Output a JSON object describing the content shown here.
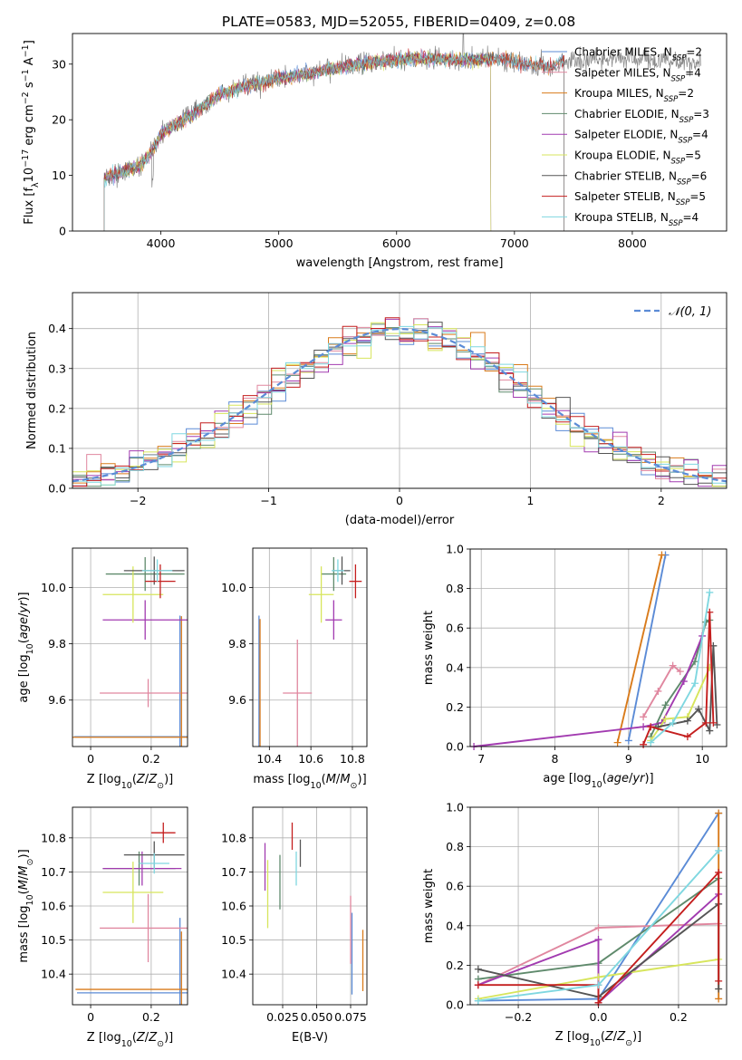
{
  "figure_title": "PLATE=0583, MJD=52055, FIBERID=0409, z=0.08",
  "colors": {
    "Chabrier MILES": "#5b8bd6",
    "Salpeter MILES": "#e0879f",
    "Kroupa MILES": "#d97b1b",
    "Chabrier ELODIE": "#5f8a6c",
    "Salpeter ELODIE": "#a23bb0",
    "Kroupa ELODIE": "#d7e55c",
    "Chabrier STELIB": "#555555",
    "Salpeter STELIB": "#c41e1e",
    "Kroupa STELIB": "#7fd7e0",
    "spectrum": "#888888",
    "normal_curve": "#5b8bd6"
  },
  "chart_data": [
    {
      "id": "spectrum",
      "type": "line",
      "title": "PLATE=0583, MJD=52055, FIBERID=0409, z=0.08",
      "xlabel": "wavelength [Angstrom, rest frame]",
      "ylabel": "Flux [fλ10^-17 erg cm^-2 s^-1 A^-1]",
      "xlim": [
        3250,
        8800
      ],
      "ylim": [
        0,
        35.5
      ],
      "xticks": [
        4000,
        5000,
        6000,
        7000,
        8000
      ],
      "yticks": [
        0,
        10,
        20,
        30
      ],
      "grid": false,
      "legend_position": "right",
      "data_series": {
        "name": "data",
        "color": "#888888"
      },
      "continuum": {
        "x": [
          3520,
          3650,
          3800,
          3900,
          4000,
          4150,
          4300,
          4500,
          4700,
          4900,
          5100,
          5300,
          5500,
          5700,
          5900,
          6100,
          6300,
          6500,
          6700,
          6900,
          7100,
          7300,
          7400,
          7600,
          7800,
          8000,
          8200,
          8400,
          8580
        ],
        "y": [
          9.5,
          10.5,
          11.5,
          13.5,
          17.5,
          19.5,
          21.5,
          24.5,
          26.0,
          27.0,
          27.8,
          28.5,
          29.3,
          30.0,
          30.5,
          31.0,
          31.0,
          30.8,
          30.8,
          31.0,
          30.0,
          29.5,
          30.5,
          30.8,
          31.0,
          31.0,
          30.8,
          30.5,
          29.8
        ]
      },
      "series": [
        {
          "name": "Chabrier MILES",
          "label_main": "Chabrier MILES, N",
          "label_sub": "SSP",
          "label_tail": "=2",
          "x_range": [
            3520,
            7420
          ]
        },
        {
          "name": "Salpeter MILES",
          "label_main": "Salpeter MILES, N",
          "label_sub": "SSP",
          "label_tail": "=4",
          "x_range": [
            3520,
            7420
          ]
        },
        {
          "name": "Kroupa MILES",
          "label_main": "Kroupa MILES, N",
          "label_sub": "SSP",
          "label_tail": "=2",
          "x_range": [
            3520,
            7420
          ]
        },
        {
          "name": "Chabrier ELODIE",
          "label_main": "Chabrier ELODIE, N",
          "label_sub": "SSP",
          "label_tail": "=3",
          "x_range": [
            3520,
            6800
          ]
        },
        {
          "name": "Salpeter ELODIE",
          "label_main": "Salpeter ELODIE, N",
          "label_sub": "SSP",
          "label_tail": "=4",
          "x_range": [
            3520,
            6800
          ]
        },
        {
          "name": "Kroupa ELODIE",
          "label_main": "Kroupa ELODIE, N",
          "label_sub": "SSP",
          "label_tail": "=5",
          "x_range": [
            3520,
            6800
          ]
        },
        {
          "name": "Chabrier STELIB",
          "label_main": "Chabrier STELIB, N",
          "label_sub": "SSP",
          "label_tail": "=6",
          "x_range": [
            3520,
            7420
          ]
        },
        {
          "name": "Salpeter STELIB",
          "label_main": "Salpeter STELIB, N",
          "label_sub": "SSP",
          "label_tail": "=5",
          "x_range": [
            3520,
            7420
          ]
        },
        {
          "name": "Kroupa STELIB",
          "label_main": "Kroupa STELIB, N",
          "label_sub": "SSP",
          "label_tail": "=4",
          "x_range": [
            3520,
            7420
          ]
        }
      ]
    },
    {
      "id": "residuals",
      "type": "step-histogram",
      "xlabel": "(data-model)/error",
      "ylabel": "Normed distribution",
      "xlim": [
        -2.5,
        2.5
      ],
      "ylim": [
        0,
        0.49
      ],
      "xticks": [
        -2,
        -1,
        0,
        1,
        2
      ],
      "yticks": [
        0.0,
        0.1,
        0.2,
        0.3,
        0.4
      ],
      "grid": true,
      "legend": "𝒩(0, 1)",
      "legend_position": "top-right",
      "bin_edges_range": [
        -2.5,
        2.5
      ],
      "bins": 46,
      "normal_curve": {
        "mean": 0,
        "sigma": 1,
        "style": "dashed"
      }
    },
    {
      "id": "age_vs_Z",
      "type": "errorbar",
      "xlabel": "Z [log10(Z/Z☉)]",
      "ylabel": "age  [log10(age/yr)]",
      "xlim": [
        -0.06,
        0.32
      ],
      "ylim": [
        9.435,
        10.14
      ],
      "xticks": [
        0.0,
        0.2
      ],
      "yticks": [
        9.6,
        9.8,
        10.0
      ],
      "grid": true,
      "points": [
        {
          "series": "Chabrier MILES",
          "x": 0.295,
          "y": 9.47,
          "xerr": 0.35,
          "yerr": 0.43
        },
        {
          "series": "Salpeter MILES",
          "x": 0.19,
          "y": 9.625,
          "xerr": 0.16,
          "yerr": 0.05
        },
        {
          "series": "Kroupa MILES",
          "x": 0.3,
          "y": 9.468,
          "xerr": 0.36,
          "yerr": 0.43
        },
        {
          "series": "Chabrier ELODIE",
          "x": 0.18,
          "y": 10.048,
          "xerr": 0.13,
          "yerr": 0.06
        },
        {
          "series": "Salpeter ELODIE",
          "x": 0.18,
          "y": 9.885,
          "xerr": 0.14,
          "yerr": 0.07
        },
        {
          "series": "Kroupa ELODIE",
          "x": 0.14,
          "y": 9.975,
          "xerr": 0.1,
          "yerr": 0.1
        },
        {
          "series": "Chabrier STELIB",
          "x": 0.21,
          "y": 10.06,
          "xerr": 0.1,
          "yerr": 0.05
        },
        {
          "series": "Salpeter STELIB",
          "x": 0.23,
          "y": 10.022,
          "xerr": 0.05,
          "yerr": 0.06
        },
        {
          "series": "Kroupa STELIB",
          "x": 0.22,
          "y": 10.06,
          "xerr": 0.05,
          "yerr": 0.04
        }
      ]
    },
    {
      "id": "age_vs_mass",
      "type": "errorbar",
      "xlabel": "mass [log10(M/M☉)]",
      "ylabel": "",
      "xlim": [
        10.32,
        10.87
      ],
      "ylim": [
        9.435,
        10.14
      ],
      "xticks": [
        10.4,
        10.6,
        10.8
      ],
      "yticks": [
        9.6,
        9.8,
        10.0
      ],
      "grid": true,
      "points": [
        {
          "series": "Chabrier MILES",
          "x": 10.35,
          "y": 9.47,
          "xerr": 0.0,
          "yerr": 0.43
        },
        {
          "series": "Salpeter MILES",
          "x": 10.535,
          "y": 9.625,
          "xerr": 0.07,
          "yerr": 0.19
        },
        {
          "series": "Kroupa MILES",
          "x": 10.355,
          "y": 9.468,
          "xerr": 0.0,
          "yerr": 0.42
        },
        {
          "series": "Chabrier ELODIE",
          "x": 10.71,
          "y": 10.048,
          "xerr": 0.06,
          "yerr": 0.06
        },
        {
          "series": "Salpeter ELODIE",
          "x": 10.71,
          "y": 9.885,
          "xerr": 0.04,
          "yerr": 0.07
        },
        {
          "series": "Kroupa ELODIE",
          "x": 10.65,
          "y": 9.975,
          "xerr": 0.06,
          "yerr": 0.1
        },
        {
          "series": "Chabrier STELIB",
          "x": 10.75,
          "y": 10.06,
          "xerr": 0.04,
          "yerr": 0.05
        },
        {
          "series": "Salpeter STELIB",
          "x": 10.815,
          "y": 10.022,
          "xerr": 0.03,
          "yerr": 0.06
        },
        {
          "series": "Kroupa STELIB",
          "x": 10.73,
          "y": 10.06,
          "xerr": 0.03,
          "yerr": 0.04
        }
      ]
    },
    {
      "id": "weight_vs_age",
      "type": "line",
      "xlabel": "age  [log10(age/yr)]",
      "ylabel": "mass weight",
      "xlim": [
        6.85,
        10.33
      ],
      "ylim": [
        0,
        1.0
      ],
      "xticks": [
        7,
        8,
        9,
        10
      ],
      "yticks": [
        0.0,
        0.2,
        0.4,
        0.6,
        0.8,
        1.0
      ],
      "grid": true,
      "series": [
        {
          "name": "Chabrier MILES",
          "x": [
            9.0,
            9.5
          ],
          "y": [
            0.03,
            0.97
          ]
        },
        {
          "name": "Salpeter MILES",
          "x": [
            9.2,
            9.4,
            9.6,
            9.7
          ],
          "y": [
            0.15,
            0.28,
            0.41,
            0.38
          ]
        },
        {
          "name": "Kroupa MILES",
          "x": [
            8.85,
            9.45
          ],
          "y": [
            0.02,
            0.97
          ]
        },
        {
          "name": "Chabrier ELODIE",
          "x": [
            9.3,
            9.5,
            9.9,
            10.05,
            10.1
          ],
          "y": [
            0.05,
            0.21,
            0.43,
            0.63,
            0.64
          ]
        },
        {
          "name": "Salpeter ELODIE",
          "x": [
            6.9,
            9.2,
            9.45,
            9.75,
            10.0
          ],
          "y": [
            0.0,
            0.1,
            0.12,
            0.33,
            0.56
          ]
        },
        {
          "name": "Kroupa ELODIE",
          "x": [
            9.3,
            9.5,
            9.8,
            10.1
          ],
          "y": [
            0.03,
            0.14,
            0.15,
            0.4
          ]
        },
        {
          "name": "Chabrier STELIB",
          "x": [
            9.4,
            9.8,
            9.95,
            10.1,
            10.15,
            10.2
          ],
          "y": [
            0.1,
            0.13,
            0.19,
            0.08,
            0.51,
            0.11
          ]
        },
        {
          "name": "Salpeter STELIB",
          "x": [
            9.2,
            9.3,
            9.8,
            10.05,
            10.1,
            10.15
          ],
          "y": [
            0.01,
            0.1,
            0.05,
            0.12,
            0.68,
            0.12
          ]
        },
        {
          "name": "Kroupa STELIB",
          "x": [
            9.3,
            9.6,
            9.9,
            10.1
          ],
          "y": [
            0.02,
            0.12,
            0.32,
            0.78
          ]
        }
      ]
    },
    {
      "id": "mass_vs_Z",
      "type": "errorbar",
      "xlabel": "Z [log10(Z/Z☉)]",
      "ylabel": "mass [log10(M/M☉)]",
      "xlim": [
        -0.06,
        0.32
      ],
      "ylim": [
        10.31,
        10.89
      ],
      "xticks": [
        0.0,
        0.2
      ],
      "yticks": [
        10.4,
        10.5,
        10.6,
        10.7,
        10.8
      ],
      "grid": true,
      "points": [
        {
          "series": "Chabrier MILES",
          "x": 0.295,
          "y": 10.345,
          "xerr": 0.34,
          "yerr": 0.22
        },
        {
          "series": "Salpeter MILES",
          "x": 0.19,
          "y": 10.535,
          "xerr": 0.16,
          "yerr": 0.1
        },
        {
          "series": "Kroupa MILES",
          "x": 0.3,
          "y": 10.355,
          "xerr": 0.35,
          "yerr": 0.17
        },
        {
          "series": "Chabrier ELODIE",
          "x": 0.16,
          "y": 10.71,
          "xerr": 0.12,
          "yerr": 0.05
        },
        {
          "series": "Salpeter ELODIE",
          "x": 0.17,
          "y": 10.71,
          "xerr": 0.13,
          "yerr": 0.05
        },
        {
          "series": "Kroupa ELODIE",
          "x": 0.14,
          "y": 10.64,
          "xerr": 0.1,
          "yerr": 0.09
        },
        {
          "series": "Chabrier STELIB",
          "x": 0.21,
          "y": 10.75,
          "xerr": 0.1,
          "yerr": 0.04
        },
        {
          "series": "Salpeter STELIB",
          "x": 0.24,
          "y": 10.815,
          "xerr": 0.04,
          "yerr": 0.03
        },
        {
          "series": "Kroupa STELIB",
          "x": 0.21,
          "y": 10.725,
          "xerr": 0.05,
          "yerr": 0.03
        }
      ]
    },
    {
      "id": "mass_vs_EBV",
      "type": "errorbar",
      "xlabel": "E(B-V)",
      "ylabel": "",
      "xlim": [
        0.003,
        0.087
      ],
      "ylim": [
        10.31,
        10.89
      ],
      "xticks": [
        0.025,
        0.05,
        0.075
      ],
      "xticklabels": [
        "0.025",
        "0.050",
        "0.075"
      ],
      "yticks": [
        10.4,
        10.5,
        10.6,
        10.7,
        10.8
      ],
      "grid": true,
      "points": [
        {
          "series": "Chabrier MILES",
          "x": 0.076,
          "y": 10.46,
          "xerr": 0,
          "yerr": 0.12
        },
        {
          "series": "Salpeter MILES",
          "x": 0.075,
          "y": 10.53,
          "xerr": 0,
          "yerr": 0.1
        },
        {
          "series": "Kroupa MILES",
          "x": 0.084,
          "y": 10.44,
          "xerr": 0,
          "yerr": 0.09
        },
        {
          "series": "Chabrier ELODIE",
          "x": 0.023,
          "y": 10.67,
          "xerr": 0,
          "yerr": 0.08
        },
        {
          "series": "Salpeter ELODIE",
          "x": 0.012,
          "y": 10.715,
          "xerr": 0,
          "yerr": 0.07
        },
        {
          "series": "Kroupa ELODIE",
          "x": 0.014,
          "y": 10.635,
          "xerr": 0,
          "yerr": 0.1
        },
        {
          "series": "Chabrier STELIB",
          "x": 0.038,
          "y": 10.755,
          "xerr": 0,
          "yerr": 0.04
        },
        {
          "series": "Salpeter STELIB",
          "x": 0.032,
          "y": 10.805,
          "xerr": 0,
          "yerr": 0.04
        },
        {
          "series": "Kroupa STELIB",
          "x": 0.035,
          "y": 10.71,
          "xerr": 0,
          "yerr": 0.05
        }
      ]
    },
    {
      "id": "weight_vs_Z",
      "type": "line",
      "xlabel": "Z [log10(Z/Z☉)]",
      "ylabel": "mass weight",
      "xlim": [
        -0.32,
        0.32
      ],
      "ylim": [
        0,
        1.0
      ],
      "xticks": [
        -0.2,
        0.0,
        0.2
      ],
      "xticklabels": [
        "−0.2",
        "0.0",
        "0.2"
      ],
      "yticks": [
        0.0,
        0.2,
        0.4,
        0.6,
        0.8,
        1.0
      ],
      "grid": true,
      "series": [
        {
          "name": "Chabrier MILES",
          "x": [
            -0.3,
            0.0,
            0.3
          ],
          "y": [
            0.02,
            0.03,
            0.97
          ]
        },
        {
          "name": "Salpeter MILES",
          "x": [
            -0.3,
            0.0,
            0.3
          ],
          "y": [
            0.1,
            0.39,
            0.41
          ]
        },
        {
          "name": "Kroupa MILES",
          "x": [
            0.3,
            0.3
          ],
          "y": [
            0.03,
            0.97
          ]
        },
        {
          "name": "Chabrier ELODIE",
          "x": [
            -0.3,
            0.0,
            0.3
          ],
          "y": [
            0.13,
            0.21,
            0.64
          ]
        },
        {
          "name": "Salpeter ELODIE",
          "x": [
            -0.3,
            0.0,
            0.0,
            0.3
          ],
          "y": [
            0.1,
            0.33,
            0.01,
            0.56
          ]
        },
        {
          "name": "Kroupa ELODIE",
          "x": [
            -0.3,
            0.0,
            0.3
          ],
          "y": [
            0.03,
            0.14,
            0.23
          ]
        },
        {
          "name": "Chabrier STELIB",
          "x": [
            -0.3,
            0.0,
            0.3,
            0.3
          ],
          "y": [
            0.18,
            0.04,
            0.51,
            0.08
          ]
        },
        {
          "name": "Salpeter STELIB",
          "x": [
            -0.3,
            0.0,
            0.0,
            0.3,
            0.3
          ],
          "y": [
            0.1,
            0.1,
            0.01,
            0.67,
            0.12
          ]
        },
        {
          "name": "Kroupa STELIB",
          "x": [
            -0.3,
            0.0,
            0.3
          ],
          "y": [
            0.02,
            0.1,
            0.78
          ]
        }
      ]
    }
  ]
}
